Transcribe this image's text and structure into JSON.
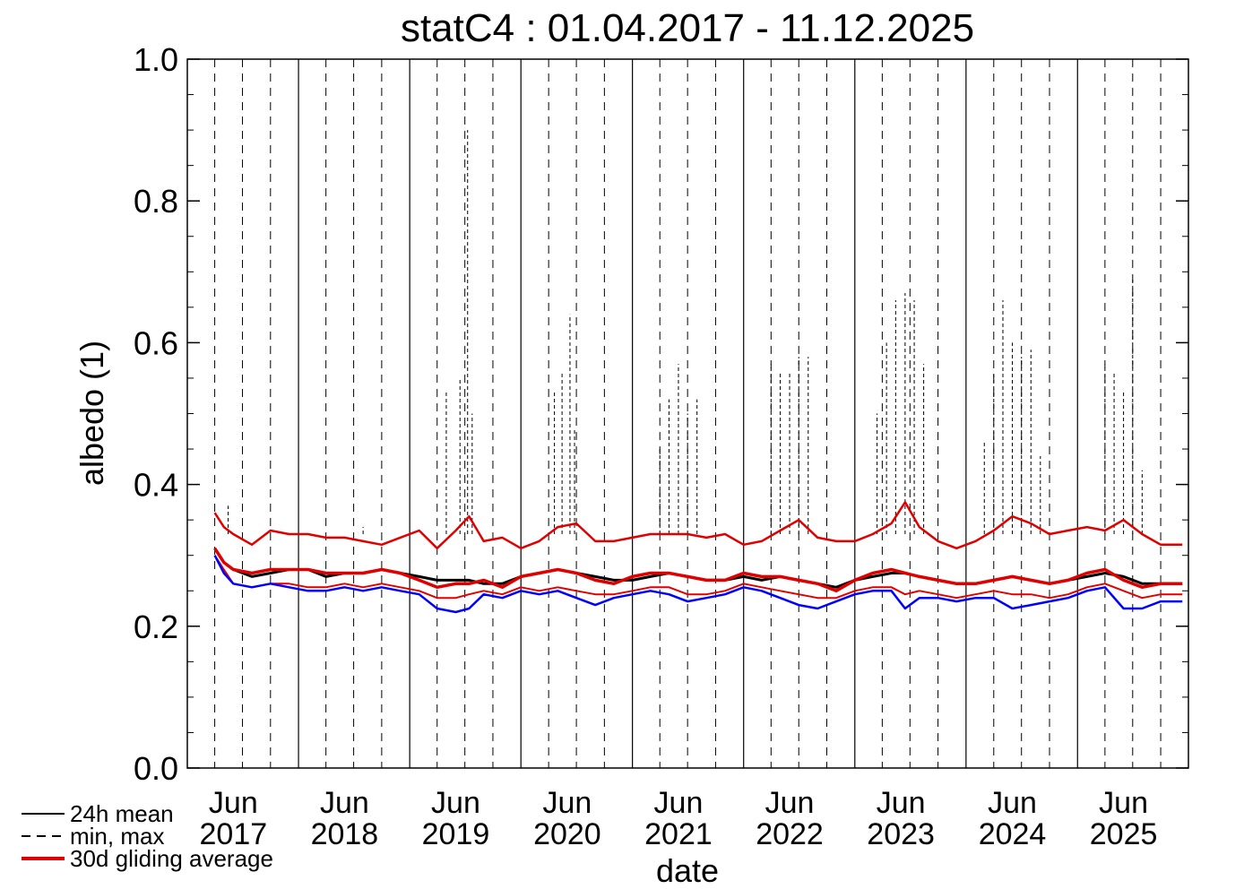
{
  "chart_data": {
    "type": "line",
    "title": "statC4 : 01.04.2017 - 11.12.2025",
    "xlabel": "date",
    "ylabel": "albedo (1)",
    "xlim": [
      "2017-01-01",
      "2025-12-31"
    ],
    "ylim": [
      0.0,
      1.0
    ],
    "yticks": [
      "0.0",
      "0.2",
      "0.4",
      "0.6",
      "0.8",
      "1.0"
    ],
    "xticks": [
      {
        "label": [
          "Jun",
          "2017"
        ],
        "date": "2017-06-01"
      },
      {
        "label": [
          "Jun",
          "2018"
        ],
        "date": "2018-06-01"
      },
      {
        "label": [
          "Jun",
          "2019"
        ],
        "date": "2019-06-01"
      },
      {
        "label": [
          "Jun",
          "2020"
        ],
        "date": "2020-06-01"
      },
      {
        "label": [
          "Jun",
          "2021"
        ],
        "date": "2021-06-01"
      },
      {
        "label": [
          "Jun",
          "2022"
        ],
        "date": "2022-06-01"
      },
      {
        "label": [
          "Jun",
          "2023"
        ],
        "date": "2023-06-01"
      },
      {
        "label": [
          "Jun",
          "2024"
        ],
        "date": "2024-06-01"
      },
      {
        "label": [
          "Jun",
          "2025"
        ],
        "date": "2025-06-01"
      }
    ],
    "grid": {
      "solid_at_year_start": true,
      "dashed_quarterly": true
    },
    "legend": {
      "placement": "bottom-left",
      "entries": [
        {
          "label": "24h mean",
          "style": "solid",
          "color": "#000000"
        },
        {
          "label": "min, max",
          "style": "dashed",
          "color": "#000000"
        },
        {
          "label": "30d gliding average",
          "style": "solid",
          "color": "#e00000"
        }
      ]
    },
    "colors": {
      "mean": "#000000",
      "max": "#000000",
      "min": "#0000ff",
      "gliding": "#e00000"
    },
    "x": [
      "2017-04-01",
      "2017-05-01",
      "2017-06-01",
      "2017-08-01",
      "2017-10-01",
      "2017-12-01",
      "2018-02-01",
      "2018-04-01",
      "2018-06-01",
      "2018-08-01",
      "2018-10-01",
      "2018-12-01",
      "2019-02-01",
      "2019-04-01",
      "2019-06-01",
      "2019-07-15",
      "2019-09-01",
      "2019-11-01",
      "2020-01-01",
      "2020-03-01",
      "2020-05-01",
      "2020-07-01",
      "2020-09-01",
      "2020-11-01",
      "2021-01-01",
      "2021-03-01",
      "2021-05-01",
      "2021-07-01",
      "2021-09-01",
      "2021-11-01",
      "2022-01-01",
      "2022-03-01",
      "2022-05-01",
      "2022-07-01",
      "2022-09-01",
      "2022-11-01",
      "2023-01-01",
      "2023-03-01",
      "2023-05-01",
      "2023-06-15",
      "2023-08-01",
      "2023-10-01",
      "2023-12-01",
      "2024-02-01",
      "2024-04-01",
      "2024-06-01",
      "2024-08-01",
      "2024-10-01",
      "2024-12-01",
      "2025-02-01",
      "2025-04-01",
      "2025-06-01",
      "2025-08-01",
      "2025-10-01",
      "2025-12-11"
    ],
    "series": [
      {
        "name": "24h mean",
        "style": "solid",
        "color": "#000000",
        "values": [
          0.31,
          0.29,
          0.28,
          0.27,
          0.275,
          0.28,
          0.28,
          0.27,
          0.275,
          0.275,
          0.28,
          0.275,
          0.27,
          0.265,
          0.265,
          0.265,
          0.26,
          0.26,
          0.27,
          0.275,
          0.28,
          0.275,
          0.27,
          0.265,
          0.265,
          0.27,
          0.275,
          0.27,
          0.265,
          0.265,
          0.27,
          0.265,
          0.27,
          0.265,
          0.26,
          0.255,
          0.265,
          0.27,
          0.275,
          0.275,
          0.27,
          0.265,
          0.26,
          0.26,
          0.265,
          0.27,
          0.265,
          0.26,
          0.265,
          0.27,
          0.275,
          0.27,
          0.26,
          0.26,
          0.26
        ]
      },
      {
        "name": "30d gliding average",
        "style": "solid",
        "color": "#e00000",
        "role": "max-gliding",
        "values": [
          0.36,
          0.34,
          0.33,
          0.315,
          0.335,
          0.33,
          0.33,
          0.325,
          0.325,
          0.32,
          0.315,
          0.325,
          0.335,
          0.31,
          0.335,
          0.355,
          0.32,
          0.325,
          0.31,
          0.32,
          0.34,
          0.345,
          0.32,
          0.32,
          0.325,
          0.33,
          0.33,
          0.33,
          0.325,
          0.33,
          0.315,
          0.32,
          0.335,
          0.35,
          0.325,
          0.32,
          0.32,
          0.33,
          0.345,
          0.375,
          0.34,
          0.32,
          0.31,
          0.32,
          0.335,
          0.355,
          0.345,
          0.33,
          0.335,
          0.34,
          0.335,
          0.35,
          0.33,
          0.315,
          0.315
        ]
      },
      {
        "name": "30d gliding average",
        "style": "solid",
        "color": "#e00000",
        "role": "mean-gliding",
        "values": [
          0.31,
          0.29,
          0.28,
          0.275,
          0.28,
          0.28,
          0.28,
          0.275,
          0.275,
          0.275,
          0.28,
          0.275,
          0.265,
          0.255,
          0.26,
          0.26,
          0.265,
          0.255,
          0.27,
          0.275,
          0.28,
          0.275,
          0.265,
          0.26,
          0.27,
          0.275,
          0.275,
          0.27,
          0.265,
          0.265,
          0.275,
          0.27,
          0.27,
          0.265,
          0.26,
          0.25,
          0.265,
          0.275,
          0.28,
          0.275,
          0.27,
          0.265,
          0.26,
          0.26,
          0.265,
          0.27,
          0.265,
          0.26,
          0.265,
          0.275,
          0.28,
          0.265,
          0.255,
          0.26,
          0.26
        ]
      },
      {
        "name": "30d gliding average",
        "style": "solid",
        "color": "#e00000",
        "role": "min-gliding",
        "values": [
          0.3,
          0.28,
          0.26,
          0.255,
          0.26,
          0.26,
          0.255,
          0.255,
          0.26,
          0.255,
          0.26,
          0.255,
          0.25,
          0.24,
          0.24,
          0.245,
          0.25,
          0.245,
          0.255,
          0.25,
          0.255,
          0.25,
          0.245,
          0.245,
          0.25,
          0.255,
          0.255,
          0.245,
          0.245,
          0.25,
          0.26,
          0.255,
          0.25,
          0.245,
          0.24,
          0.24,
          0.25,
          0.255,
          0.255,
          0.245,
          0.25,
          0.245,
          0.24,
          0.245,
          0.25,
          0.245,
          0.245,
          0.24,
          0.245,
          0.255,
          0.26,
          0.25,
          0.24,
          0.245,
          0.245
        ]
      },
      {
        "name": "min, max",
        "style": "dashed",
        "color": "#0000ff",
        "role": "min",
        "values": [
          0.3,
          0.275,
          0.26,
          0.255,
          0.26,
          0.255,
          0.25,
          0.25,
          0.255,
          0.25,
          0.255,
          0.25,
          0.245,
          0.225,
          0.22,
          0.225,
          0.245,
          0.24,
          0.25,
          0.245,
          0.25,
          0.24,
          0.23,
          0.24,
          0.245,
          0.25,
          0.245,
          0.235,
          0.24,
          0.245,
          0.255,
          0.25,
          0.24,
          0.23,
          0.225,
          0.235,
          0.245,
          0.25,
          0.25,
          0.225,
          0.24,
          0.24,
          0.235,
          0.24,
          0.24,
          0.225,
          0.23,
          0.235,
          0.24,
          0.25,
          0.255,
          0.225,
          0.225,
          0.235,
          0.235
        ]
      }
    ],
    "max_spikes": [
      {
        "x": "2017-05-15",
        "y": 0.37
      },
      {
        "x": "2018-08-01",
        "y": 0.34
      },
      {
        "x": "2019-05-01",
        "y": 0.53
      },
      {
        "x": "2019-06-15",
        "y": 0.55
      },
      {
        "x": "2019-07-10",
        "y": 0.9
      },
      {
        "x": "2019-07-25",
        "y": 0.5
      },
      {
        "x": "2020-04-20",
        "y": 0.53
      },
      {
        "x": "2020-05-15",
        "y": 0.56
      },
      {
        "x": "2020-06-10",
        "y": 0.64
      },
      {
        "x": "2020-06-25",
        "y": 0.48
      },
      {
        "x": "2021-04-01",
        "y": 0.45
      },
      {
        "x": "2021-05-01",
        "y": 0.52
      },
      {
        "x": "2021-06-01",
        "y": 0.57
      },
      {
        "x": "2021-07-01",
        "y": 0.5
      },
      {
        "x": "2021-08-01",
        "y": 0.52
      },
      {
        "x": "2022-04-01",
        "y": 0.57
      },
      {
        "x": "2022-05-01",
        "y": 0.56
      },
      {
        "x": "2022-06-01",
        "y": 0.56
      },
      {
        "x": "2022-07-01",
        "y": 0.58
      },
      {
        "x": "2022-08-01",
        "y": 0.58
      },
      {
        "x": "2023-03-15",
        "y": 0.5
      },
      {
        "x": "2023-04-15",
        "y": 0.6
      },
      {
        "x": "2023-05-15",
        "y": 0.66
      },
      {
        "x": "2023-06-15",
        "y": 0.67
      },
      {
        "x": "2023-07-15",
        "y": 0.66
      },
      {
        "x": "2023-08-15",
        "y": 0.57
      },
      {
        "x": "2024-03-01",
        "y": 0.46
      },
      {
        "x": "2024-04-01",
        "y": 0.56
      },
      {
        "x": "2024-05-01",
        "y": 0.66
      },
      {
        "x": "2024-06-01",
        "y": 0.6
      },
      {
        "x": "2024-07-01",
        "y": 0.58
      },
      {
        "x": "2024-08-01",
        "y": 0.59
      },
      {
        "x": "2024-09-01",
        "y": 0.44
      },
      {
        "x": "2025-04-01",
        "y": 0.57
      },
      {
        "x": "2025-05-01",
        "y": 0.56
      },
      {
        "x": "2025-06-01",
        "y": 0.53
      },
      {
        "x": "2025-07-01",
        "y": 0.69
      },
      {
        "x": "2025-08-01",
        "y": 0.42
      }
    ]
  }
}
